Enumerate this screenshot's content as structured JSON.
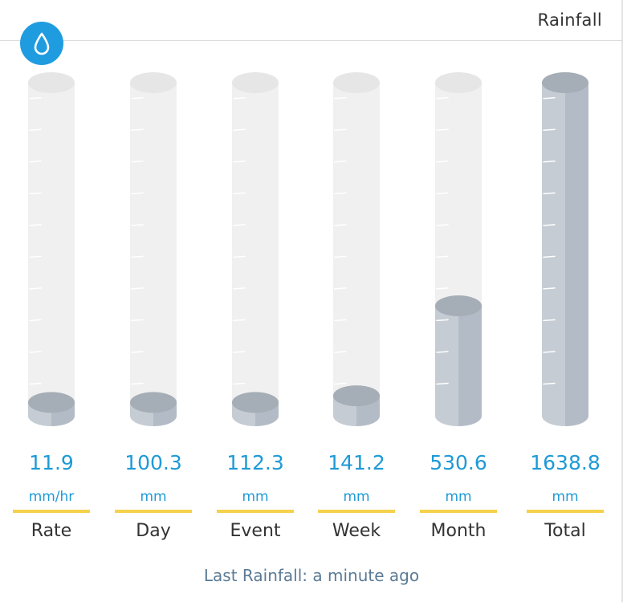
{
  "header": {
    "title": "Rainfall",
    "icon": "raindrop-icon"
  },
  "gauges": [
    {
      "id": "rate",
      "value": "11.9",
      "unit": "mm/hr",
      "label": "Rate",
      "fill_fraction": 0.04
    },
    {
      "id": "day",
      "value": "100.3",
      "unit": "mm",
      "label": "Day",
      "fill_fraction": 0.04
    },
    {
      "id": "event",
      "value": "112.3",
      "unit": "mm",
      "label": "Event",
      "fill_fraction": 0.04
    },
    {
      "id": "week",
      "value": "141.2",
      "unit": "mm",
      "label": "Week",
      "fill_fraction": 0.06
    },
    {
      "id": "month",
      "value": "530.6",
      "unit": "mm",
      "label": "Month",
      "fill_fraction": 0.33
    },
    {
      "id": "total",
      "value": "1638.8",
      "unit": "mm",
      "label": "Total",
      "fill_fraction": 1.0
    }
  ],
  "footer": {
    "last_rainfall": "Last Rainfall: a minute ago"
  },
  "colors": {
    "accent": "#1f9ce0",
    "value_text": "#1e9ad6",
    "underline": "#f5d24b",
    "tube_empty": "#f0f0f0",
    "tube_fill": "#c5ccd4",
    "tube_fill_dark": "#b3bcc6",
    "fill_top": "#a5adb6"
  }
}
